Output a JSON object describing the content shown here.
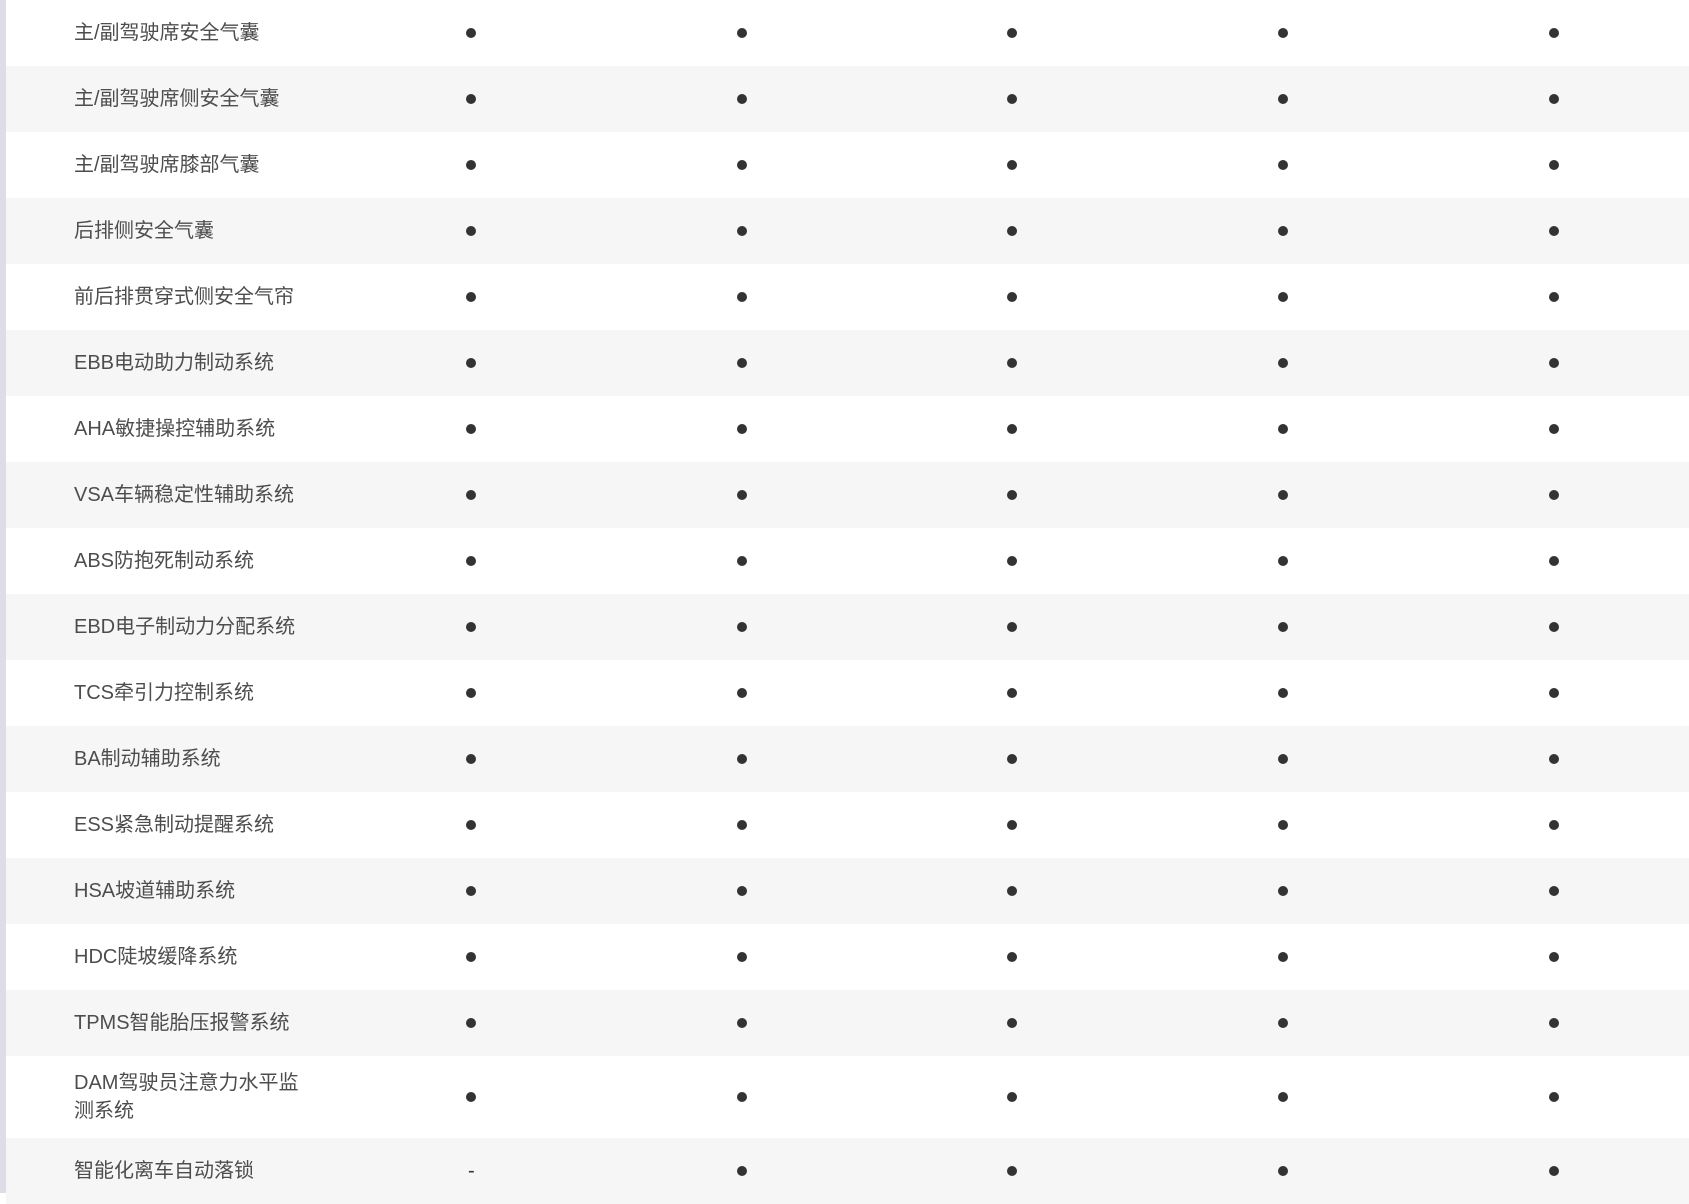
{
  "page": {
    "left_gutter_color": "#dcdde5",
    "row_background": "#ffffff",
    "alt_row_background": "#f6f6f6",
    "label_text_color": "#4d4d4d",
    "mark_color": "#333333"
  },
  "table": {
    "columns": 5,
    "present_symbol": "dot",
    "absent_symbol": "-",
    "rows": [
      {
        "label": "主/副驾驶席安全气囊",
        "cells": [
          "dot",
          "dot",
          "dot",
          "dot",
          "dot"
        ]
      },
      {
        "label": "主/副驾驶席侧安全气囊",
        "cells": [
          "dot",
          "dot",
          "dot",
          "dot",
          "dot"
        ]
      },
      {
        "label": "主/副驾驶席膝部气囊",
        "cells": [
          "dot",
          "dot",
          "dot",
          "dot",
          "dot"
        ]
      },
      {
        "label": "后排侧安全气囊",
        "cells": [
          "dot",
          "dot",
          "dot",
          "dot",
          "dot"
        ]
      },
      {
        "label": "前后排贯穿式侧安全气帘",
        "cells": [
          "dot",
          "dot",
          "dot",
          "dot",
          "dot"
        ]
      },
      {
        "label": "EBB电动助力制动系统",
        "cells": [
          "dot",
          "dot",
          "dot",
          "dot",
          "dot"
        ]
      },
      {
        "label": "AHA敏捷操控辅助系统",
        "cells": [
          "dot",
          "dot",
          "dot",
          "dot",
          "dot"
        ]
      },
      {
        "label": "VSA车辆稳定性辅助系统",
        "cells": [
          "dot",
          "dot",
          "dot",
          "dot",
          "dot"
        ]
      },
      {
        "label": "ABS防抱死制动系统",
        "cells": [
          "dot",
          "dot",
          "dot",
          "dot",
          "dot"
        ]
      },
      {
        "label": "EBD电子制动力分配系统",
        "cells": [
          "dot",
          "dot",
          "dot",
          "dot",
          "dot"
        ]
      },
      {
        "label": "TCS牵引力控制系统",
        "cells": [
          "dot",
          "dot",
          "dot",
          "dot",
          "dot"
        ]
      },
      {
        "label": "BA制动辅助系统",
        "cells": [
          "dot",
          "dot",
          "dot",
          "dot",
          "dot"
        ]
      },
      {
        "label": "ESS紧急制动提醒系统",
        "cells": [
          "dot",
          "dot",
          "dot",
          "dot",
          "dot"
        ]
      },
      {
        "label": "HSA坡道辅助系统",
        "cells": [
          "dot",
          "dot",
          "dot",
          "dot",
          "dot"
        ]
      },
      {
        "label": "HDC陡坡缓降系统",
        "cells": [
          "dot",
          "dot",
          "dot",
          "dot",
          "dot"
        ]
      },
      {
        "label": "TPMS智能胎压报警系统",
        "cells": [
          "dot",
          "dot",
          "dot",
          "dot",
          "dot"
        ]
      },
      {
        "label": "DAM驾驶员注意力水平监测系统",
        "cells": [
          "dot",
          "dot",
          "dot",
          "dot",
          "dot"
        ]
      },
      {
        "label": "智能化离车自动落锁",
        "cells": [
          "dash",
          "dot",
          "dot",
          "dot",
          "dot"
        ]
      }
    ]
  }
}
